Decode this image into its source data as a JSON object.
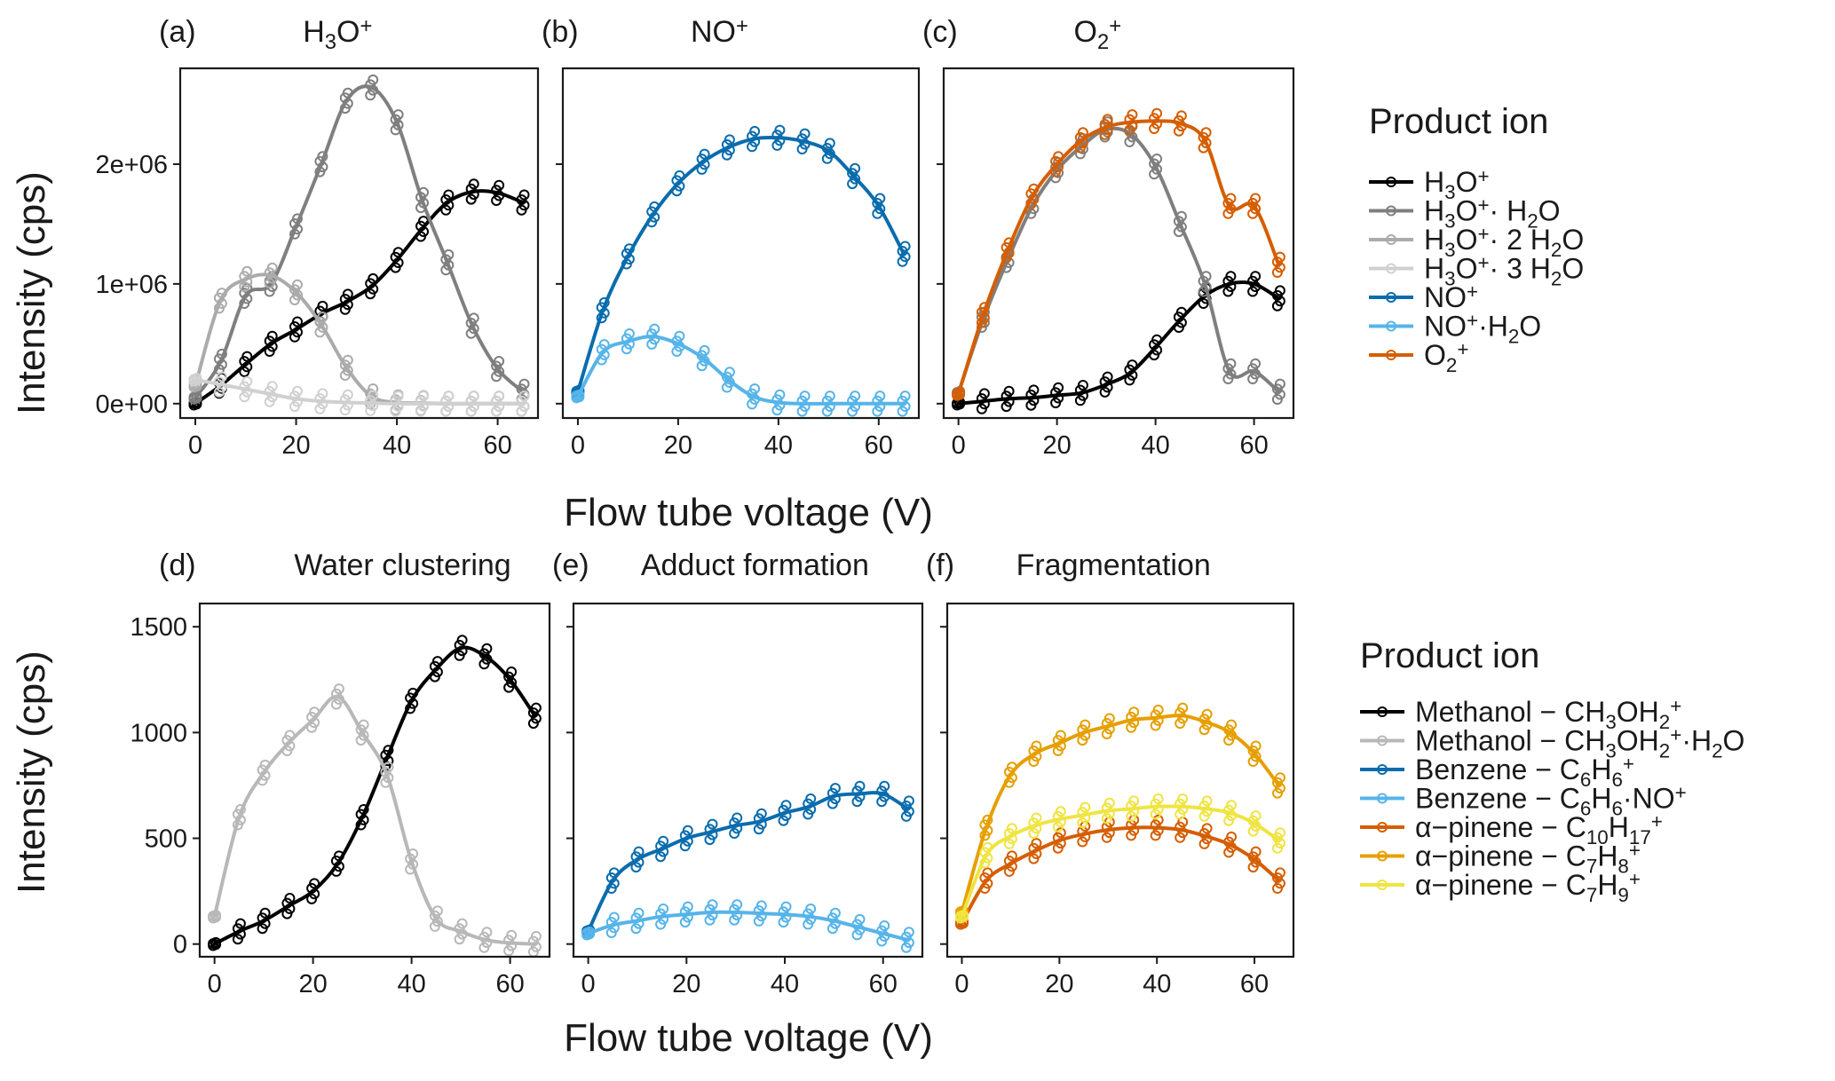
{
  "figure": {
    "x_axis_title": "Flow tube voltage (V)",
    "y_axis_title": "Intensity (cps)"
  },
  "chart_data": [
    {
      "type": "scatter",
      "panel": "a",
      "tag": "(a)",
      "title": "H3O+",
      "xlim": [
        -3,
        68
      ],
      "ylim": [
        -120000,
        2800000
      ],
      "xticks": [
        0,
        20,
        40,
        60
      ],
      "yticks": [
        0,
        1000000,
        2000000
      ],
      "ytick_labels": [
        "0e+00",
        "1e+06",
        "2e+06"
      ],
      "series": [
        {
          "name": "H3O+",
          "color": "#000000",
          "x": [
            0,
            5,
            10,
            15,
            20,
            25,
            30,
            35,
            40,
            45,
            50,
            55,
            60,
            65
          ],
          "y": [
            0,
            150000,
            330000,
            500000,
            620000,
            750000,
            850000,
            980000,
            1200000,
            1460000,
            1680000,
            1770000,
            1760000,
            1680000
          ]
        },
        {
          "name": "H3O+ H2O",
          "color": "#7f7f7f",
          "x": [
            0,
            5,
            10,
            15,
            20,
            25,
            30,
            35,
            40,
            45,
            50,
            55,
            60,
            65
          ],
          "y": [
            50000,
            350000,
            900000,
            1000000,
            1480000,
            2000000,
            2530000,
            2640000,
            2350000,
            1700000,
            1180000,
            650000,
            290000,
            100000
          ]
        },
        {
          "name": "H3O+ 2 H2O",
          "color": "#ababab",
          "x": [
            0,
            5,
            10,
            15,
            20,
            25,
            30,
            35,
            40,
            45,
            50,
            55,
            60,
            65
          ],
          "y": [
            150000,
            860000,
            1040000,
            1070000,
            930000,
            660000,
            300000,
            60000,
            10000,
            5000,
            0,
            0,
            0,
            0
          ]
        },
        {
          "name": "H3O+ 3 H2O",
          "color": "#d0d0d0",
          "x": [
            0,
            5,
            10,
            15,
            20,
            25,
            30,
            35,
            40,
            45,
            50,
            55,
            60,
            65
          ],
          "y": [
            200000,
            160000,
            120000,
            80000,
            40000,
            20000,
            10000,
            5000,
            0,
            0,
            0,
            0,
            0,
            0
          ]
        }
      ]
    },
    {
      "type": "scatter",
      "panel": "b",
      "tag": "(b)",
      "title": "NO+",
      "xlim": [
        -3,
        68
      ],
      "ylim": [
        -120000,
        2800000
      ],
      "xticks": [
        0,
        20,
        40,
        60
      ],
      "yticks": [
        0,
        1000000,
        2000000
      ],
      "series": [
        {
          "name": "NO+",
          "color": "#0a6cad",
          "x": [
            0,
            5,
            10,
            15,
            20,
            25,
            30,
            35,
            40,
            45,
            50,
            55,
            60,
            65
          ],
          "y": [
            100000,
            780000,
            1230000,
            1580000,
            1840000,
            2020000,
            2140000,
            2210000,
            2220000,
            2190000,
            2110000,
            1900000,
            1650000,
            1250000
          ]
        },
        {
          "name": "NO+ H2O",
          "color": "#56b4e9",
          "x": [
            0,
            5,
            10,
            15,
            20,
            25,
            30,
            35,
            40,
            45,
            50,
            55,
            60,
            65
          ],
          "y": [
            60000,
            430000,
            520000,
            560000,
            500000,
            380000,
            200000,
            60000,
            10000,
            0,
            0,
            0,
            0,
            0
          ]
        }
      ]
    },
    {
      "type": "scatter",
      "panel": "c",
      "tag": "(c)",
      "title": "O2+",
      "xlim": [
        -3,
        68
      ],
      "ylim": [
        -120000,
        2800000
      ],
      "xticks": [
        0,
        20,
        40,
        60
      ],
      "yticks": [
        0,
        1000000,
        2000000
      ],
      "series": [
        {
          "name": "H3O+",
          "color": "#000000",
          "x": [
            0,
            5,
            10,
            15,
            20,
            25,
            30,
            35,
            40,
            45,
            50,
            55,
            60,
            65
          ],
          "y": [
            0,
            20000,
            40000,
            50000,
            70000,
            90000,
            160000,
            260000,
            470000,
            700000,
            900000,
            1000000,
            1000000,
            880000
          ]
        },
        {
          "name": "H3O+ H2O",
          "color": "#7f7f7f",
          "x": [
            0,
            5,
            10,
            15,
            20,
            25,
            30,
            35,
            40,
            45,
            50,
            55,
            60,
            65
          ],
          "y": [
            90000,
            700000,
            1200000,
            1650000,
            1950000,
            2150000,
            2290000,
            2250000,
            1980000,
            1500000,
            1000000,
            270000,
            270000,
            100000
          ]
        },
        {
          "name": "O2+",
          "color": "#d55e00",
          "x": [
            0,
            5,
            10,
            15,
            20,
            25,
            30,
            35,
            40,
            45,
            50,
            55,
            60,
            65
          ],
          "y": [
            80000,
            740000,
            1280000,
            1730000,
            2000000,
            2200000,
            2310000,
            2350000,
            2360000,
            2340000,
            2200000,
            1650000,
            1650000,
            1160000
          ]
        }
      ]
    },
    {
      "type": "scatter",
      "panel": "d",
      "tag": "(d)",
      "title": "Water clustering",
      "xlim": [
        -3,
        68
      ],
      "ylim": [
        -60,
        1610
      ],
      "xticks": [
        0,
        20,
        40,
        60
      ],
      "yticks": [
        0,
        500,
        1000,
        1500
      ],
      "series": [
        {
          "name": "Methanol - CH3OH2+",
          "color": "#000000",
          "x": [
            0,
            5,
            10,
            15,
            20,
            25,
            30,
            35,
            40,
            45,
            50,
            55,
            60,
            65
          ],
          "y": [
            0,
            60,
            110,
            180,
            250,
            380,
            600,
            880,
            1150,
            1300,
            1400,
            1360,
            1250,
            1080
          ]
        },
        {
          "name": "Methanol - CH3OH2+ H2O",
          "color": "#b8b8b8",
          "x": [
            0,
            5,
            10,
            15,
            20,
            25,
            30,
            35,
            40,
            45,
            50,
            55,
            60,
            65
          ],
          "y": [
            130,
            600,
            810,
            950,
            1060,
            1170,
            1000,
            800,
            390,
            120,
            60,
            20,
            5,
            0
          ]
        }
      ]
    },
    {
      "type": "scatter",
      "panel": "e",
      "tag": "(e)",
      "title": "Adduct formation",
      "xlim": [
        -3,
        68
      ],
      "ylim": [
        -60,
        1610
      ],
      "xticks": [
        0,
        20,
        40,
        60
      ],
      "yticks": [
        0,
        500,
        1000,
        1500
      ],
      "series": [
        {
          "name": "Benzene - C6H6+",
          "color": "#0a6cad",
          "x": [
            0,
            5,
            10,
            15,
            20,
            25,
            30,
            35,
            40,
            45,
            50,
            55,
            60,
            65
          ],
          "y": [
            60,
            300,
            400,
            450,
            500,
            530,
            560,
            580,
            620,
            650,
            700,
            710,
            710,
            640
          ]
        },
        {
          "name": "Benzene - C6H6 NO+",
          "color": "#56b4e9",
          "x": [
            0,
            5,
            10,
            15,
            20,
            25,
            30,
            35,
            40,
            45,
            50,
            55,
            60,
            65
          ],
          "y": [
            50,
            90,
            110,
            130,
            140,
            150,
            150,
            145,
            140,
            130,
            110,
            80,
            50,
            20
          ]
        }
      ]
    },
    {
      "type": "scatter",
      "panel": "f",
      "tag": "(f)",
      "title": "Fragmentation",
      "xlim": [
        -3,
        68
      ],
      "ylim": [
        -60,
        1610
      ],
      "xticks": [
        0,
        20,
        40,
        60
      ],
      "yticks": [
        0,
        500,
        1000,
        1500
      ],
      "series": [
        {
          "name": "alpha-pinene - C10H17+",
          "color": "#d55e00",
          "x": [
            0,
            5,
            10,
            15,
            20,
            25,
            30,
            35,
            40,
            45,
            50,
            55,
            60,
            65
          ],
          "y": [
            100,
            300,
            380,
            440,
            490,
            520,
            540,
            550,
            550,
            540,
            510,
            470,
            400,
            300
          ]
        },
        {
          "name": "alpha-pinene - C7H8+",
          "color": "#e69f00",
          "x": [
            0,
            5,
            10,
            15,
            20,
            25,
            30,
            35,
            40,
            45,
            50,
            55,
            60,
            65
          ],
          "y": [
            150,
            550,
            800,
            900,
            950,
            1000,
            1030,
            1060,
            1070,
            1080,
            1050,
            1000,
            900,
            750
          ]
        },
        {
          "name": "alpha-pinene - C7H9+",
          "color": "#f0e442",
          "x": [
            0,
            5,
            10,
            15,
            20,
            25,
            30,
            35,
            40,
            45,
            50,
            55,
            60,
            65
          ],
          "y": [
            130,
            420,
            510,
            560,
            590,
            610,
            630,
            640,
            650,
            650,
            640,
            620,
            570,
            490
          ]
        }
      ]
    }
  ],
  "legends": [
    {
      "title": "Product ion",
      "items": [
        {
          "color": "#000000",
          "label": "H3O+"
        },
        {
          "color": "#7f7f7f",
          "label": "H3O+· H2O"
        },
        {
          "color": "#ababab",
          "label": "H3O+· 2 H2O"
        },
        {
          "color": "#d0d0d0",
          "label": "H3O+· 3 H2O"
        },
        {
          "color": "#0a6cad",
          "label": "NO+"
        },
        {
          "color": "#56b4e9",
          "label": "NO+·H2O"
        },
        {
          "color": "#d55e00",
          "label": "O2+"
        }
      ]
    },
    {
      "title": "Product ion",
      "items": [
        {
          "color": "#000000",
          "label": "Methanol − CH3OH2+"
        },
        {
          "color": "#b8b8b8",
          "label": "Methanol − CH3OH2+·H2O"
        },
        {
          "color": "#0a6cad",
          "label": "Benzene − C6H6+"
        },
        {
          "color": "#56b4e9",
          "label": "Benzene − C6H6·NO+"
        },
        {
          "color": "#d55e00",
          "label": "α−pinene − C10H17+"
        },
        {
          "color": "#e69f00",
          "label": "α−pinene − C7H8+"
        },
        {
          "color": "#f0e442",
          "label": "α−pinene − C7H9+"
        }
      ]
    }
  ]
}
